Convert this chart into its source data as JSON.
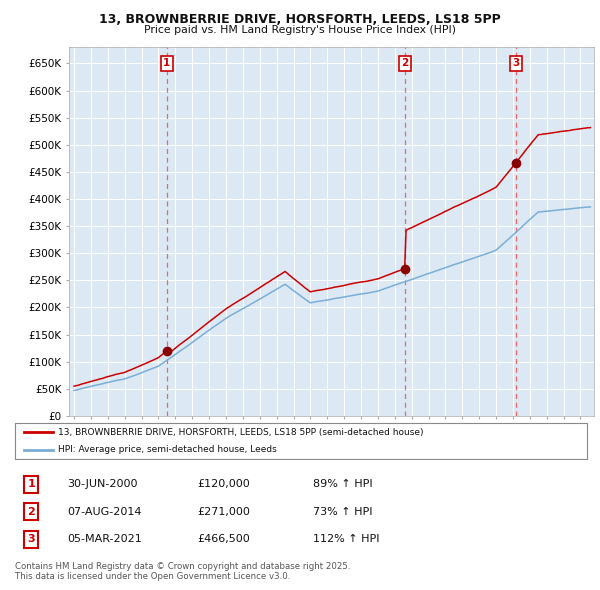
{
  "title_line1": "13, BROWNBERRIE DRIVE, HORSFORTH, LEEDS, LS18 5PP",
  "title_line2": "Price paid vs. HM Land Registry's House Price Index (HPI)",
  "ytick_labels": [
    "£0",
    "£50K",
    "£100K",
    "£150K",
    "£200K",
    "£250K",
    "£300K",
    "£350K",
    "£400K",
    "£450K",
    "£500K",
    "£550K",
    "£600K",
    "£650K"
  ],
  "ytick_values": [
    0,
    50000,
    100000,
    150000,
    200000,
    250000,
    300000,
    350000,
    400000,
    450000,
    500000,
    550000,
    600000,
    650000
  ],
  "ylim": [
    0,
    680000
  ],
  "xlim_start": 1994.7,
  "xlim_end": 2025.8,
  "sale_years": [
    2000.5,
    2014.604,
    2021.171
  ],
  "sale_prices": [
    120000,
    271000,
    466500
  ],
  "sale_labels": [
    "1",
    "2",
    "3"
  ],
  "legend_red": "13, BROWNBERRIE DRIVE, HORSFORTH, LEEDS, LS18 5PP (semi-detached house)",
  "legend_blue": "HPI: Average price, semi-detached house, Leeds",
  "table_rows": [
    [
      "1",
      "30-JUN-2000",
      "£120,000",
      "89% ↑ HPI"
    ],
    [
      "2",
      "07-AUG-2014",
      "£271,000",
      "73% ↑ HPI"
    ],
    [
      "3",
      "05-MAR-2021",
      "£466,500",
      "112% ↑ HPI"
    ]
  ],
  "footnote": "Contains HM Land Registry data © Crown copyright and database right 2025.\nThis data is licensed under the Open Government Licence v3.0.",
  "red_color": "#cc0000",
  "blue_color": "#7aaed6",
  "vline_color": "#ee6666",
  "chart_bg": "#dce9f5",
  "background_color": "#ffffff"
}
